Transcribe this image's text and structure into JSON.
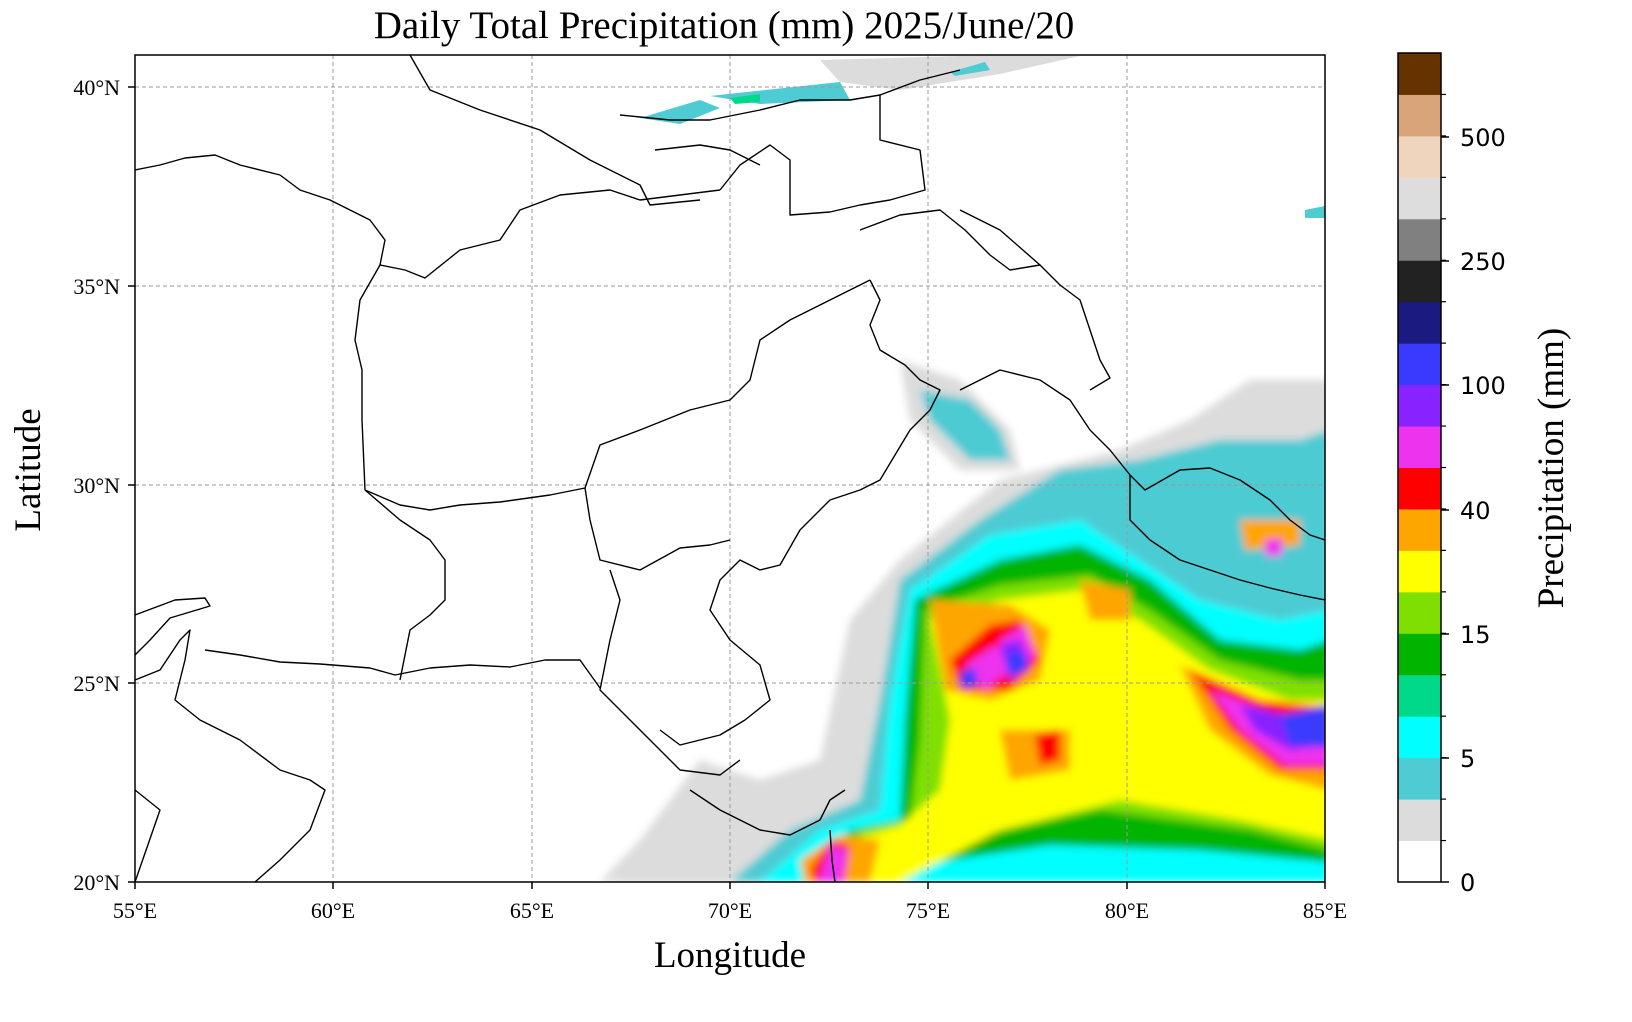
{
  "title": "Daily Total Precipitation (mm)  2025/June/20",
  "axes": {
    "xlabel": "Longitude",
    "ylabel": "Latitude",
    "lon_ticks": [
      "55°E",
      "60°E",
      "65°E",
      "70°E",
      "75°E",
      "80°E",
      "85°E"
    ],
    "lat_ticks": [
      "20°N",
      "25°N",
      "30°N",
      "35°N",
      "40°N"
    ],
    "lon_range": [
      55,
      85
    ],
    "lat_range": [
      20,
      40.8
    ],
    "grid": true
  },
  "colorbar": {
    "label": "Precipitation (mm)",
    "tick_labels": [
      "0",
      "5",
      "15",
      "40",
      "100",
      "250",
      "500"
    ],
    "levels": [
      {
        "color": "#ffffff"
      },
      {
        "color": "#dcdcdc"
      },
      {
        "color": "#4ecbd3"
      },
      {
        "color": "#00ffff"
      },
      {
        "color": "#00d98a"
      },
      {
        "color": "#00b400"
      },
      {
        "color": "#7fe000"
      },
      {
        "color": "#ffff00"
      },
      {
        "color": "#ffa500"
      },
      {
        "color": "#ff0000"
      },
      {
        "color": "#ee33ee"
      },
      {
        "color": "#8822ff"
      },
      {
        "color": "#3a3aff"
      },
      {
        "color": "#1a1a80"
      },
      {
        "color": "#222222"
      },
      {
        "color": "#808080"
      },
      {
        "color": "#dddddd"
      },
      {
        "color": "#f0d5be"
      },
      {
        "color": "#d9a47a"
      },
      {
        "color": "#663300"
      }
    ]
  }
}
